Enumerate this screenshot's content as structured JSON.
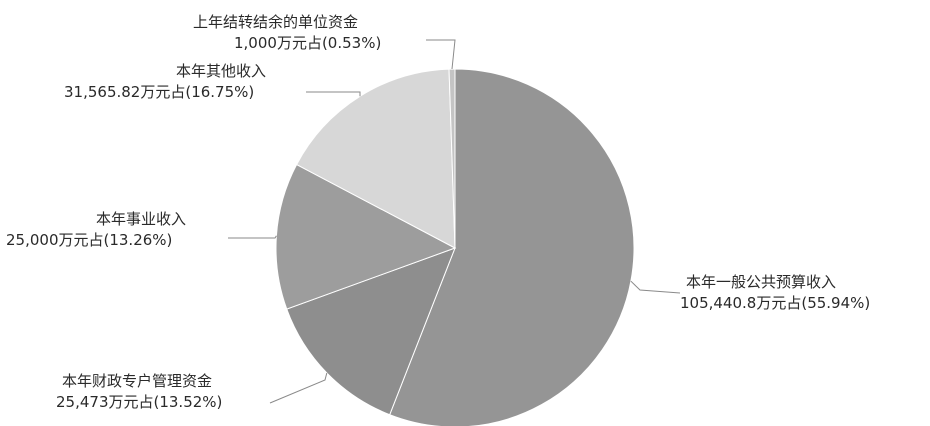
{
  "chart_data": {
    "type": "pie",
    "title": "",
    "legend": "none",
    "slices": [
      {
        "name": "本年一般公共预算收入",
        "value": 105440.8,
        "percent": 55.94,
        "value_text": "105,440.8万元占(55.94%)",
        "color": "#959595"
      },
      {
        "name": "本年财政专户管理资金",
        "value": 25473,
        "percent": 13.52,
        "value_text": "25,473万元占(13.52%)",
        "color": "#8e8e8e"
      },
      {
        "name": "本年事业收入",
        "value": 25000,
        "percent": 13.26,
        "value_text": "25,000万元占(13.26%)",
        "color": "#9d9d9d"
      },
      {
        "name": "本年其他收入",
        "value": 31565.82,
        "percent": 16.75,
        "value_text": "31,565.82万元占(16.75%)",
        "color": "#d7d7d7"
      },
      {
        "name": "上年结转结余的单位资金",
        "value": 1000,
        "percent": 0.53,
        "value_text": "1,000万元占(0.53%)",
        "color": "#c4c4c4"
      }
    ]
  }
}
